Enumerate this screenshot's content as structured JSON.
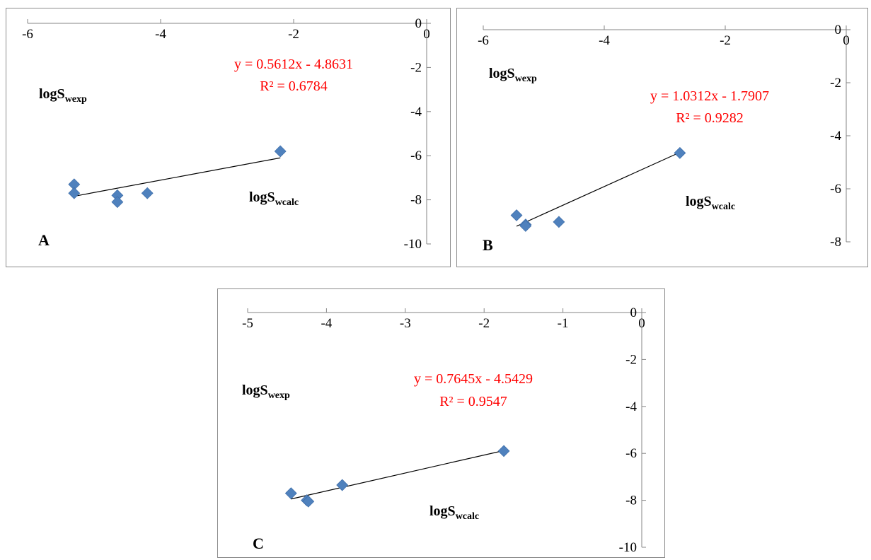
{
  "chart_data": [
    {
      "type": "scatter",
      "panel_label": "A",
      "xlim": [
        -6,
        0
      ],
      "ylim": [
        -10,
        0
      ],
      "x_ticks": [
        "-6",
        "-4",
        "-2",
        "0"
      ],
      "y_ticks": [
        "0",
        "-2",
        "-4",
        "-6",
        "-8",
        "-10"
      ],
      "ylabel": {
        "main": "logS",
        "sub": "wexp"
      },
      "xlabel": {
        "main": "logS",
        "sub": "wcalc"
      },
      "equation": "y = 0.5612x - 4.8631",
      "r2": "R² = 0.6784",
      "trendline": {
        "slope": 0.5612,
        "intercept": -4.8631
      },
      "points": [
        {
          "x": -5.3,
          "y": -7.3
        },
        {
          "x": -5.3,
          "y": -7.7
        },
        {
          "x": -4.65,
          "y": -7.8
        },
        {
          "x": -4.65,
          "y": -8.1
        },
        {
          "x": -4.2,
          "y": -7.7
        },
        {
          "x": -2.2,
          "y": -5.8
        }
      ],
      "marker_color": "#4f81bd"
    },
    {
      "type": "scatter",
      "panel_label": "B",
      "xlim": [
        -6,
        0
      ],
      "ylim": [
        -8,
        0
      ],
      "x_ticks": [
        "-6",
        "-4",
        "-2",
        "0"
      ],
      "y_ticks": [
        "0",
        "-2",
        "-4",
        "-6",
        "-8"
      ],
      "ylabel": {
        "main": "logS",
        "sub": "wexp"
      },
      "xlabel": {
        "main": "logS",
        "sub": "wcalc"
      },
      "equation": "y = 1.0312x - 1.7907",
      "r2": "R² = 0.9282",
      "trendline": {
        "slope": 1.0312,
        "intercept": -1.7907
      },
      "points": [
        {
          "x": -5.45,
          "y": -7.0
        },
        {
          "x": -5.3,
          "y": -7.35
        },
        {
          "x": -5.3,
          "y": -7.4
        },
        {
          "x": -4.75,
          "y": -7.25
        },
        {
          "x": -2.75,
          "y": -4.65
        }
      ],
      "marker_color": "#4f81bd"
    },
    {
      "type": "scatter",
      "panel_label": "C",
      "xlim": [
        -5,
        0
      ],
      "ylim": [
        -10,
        0
      ],
      "x_ticks": [
        "-5",
        "-4",
        "-3",
        "-2",
        "-1",
        "0"
      ],
      "y_ticks": [
        "0",
        "-2",
        "-4",
        "-6",
        "-8",
        "-10"
      ],
      "ylabel": {
        "main": "logS",
        "sub": "wexp"
      },
      "xlabel": {
        "main": "logS",
        "sub": "wcalc"
      },
      "equation": "y = 0.7645x - 4.5429",
      "r2": "R² = 0.9547",
      "trendline": {
        "slope": 0.7645,
        "intercept": -4.5429
      },
      "points": [
        {
          "x": -4.45,
          "y": -7.7
        },
        {
          "x": -4.25,
          "y": -8.0
        },
        {
          "x": -4.23,
          "y": -8.05
        },
        {
          "x": -3.8,
          "y": -7.35
        },
        {
          "x": -1.75,
          "y": -5.9
        }
      ],
      "marker_color": "#4f81bd"
    }
  ]
}
